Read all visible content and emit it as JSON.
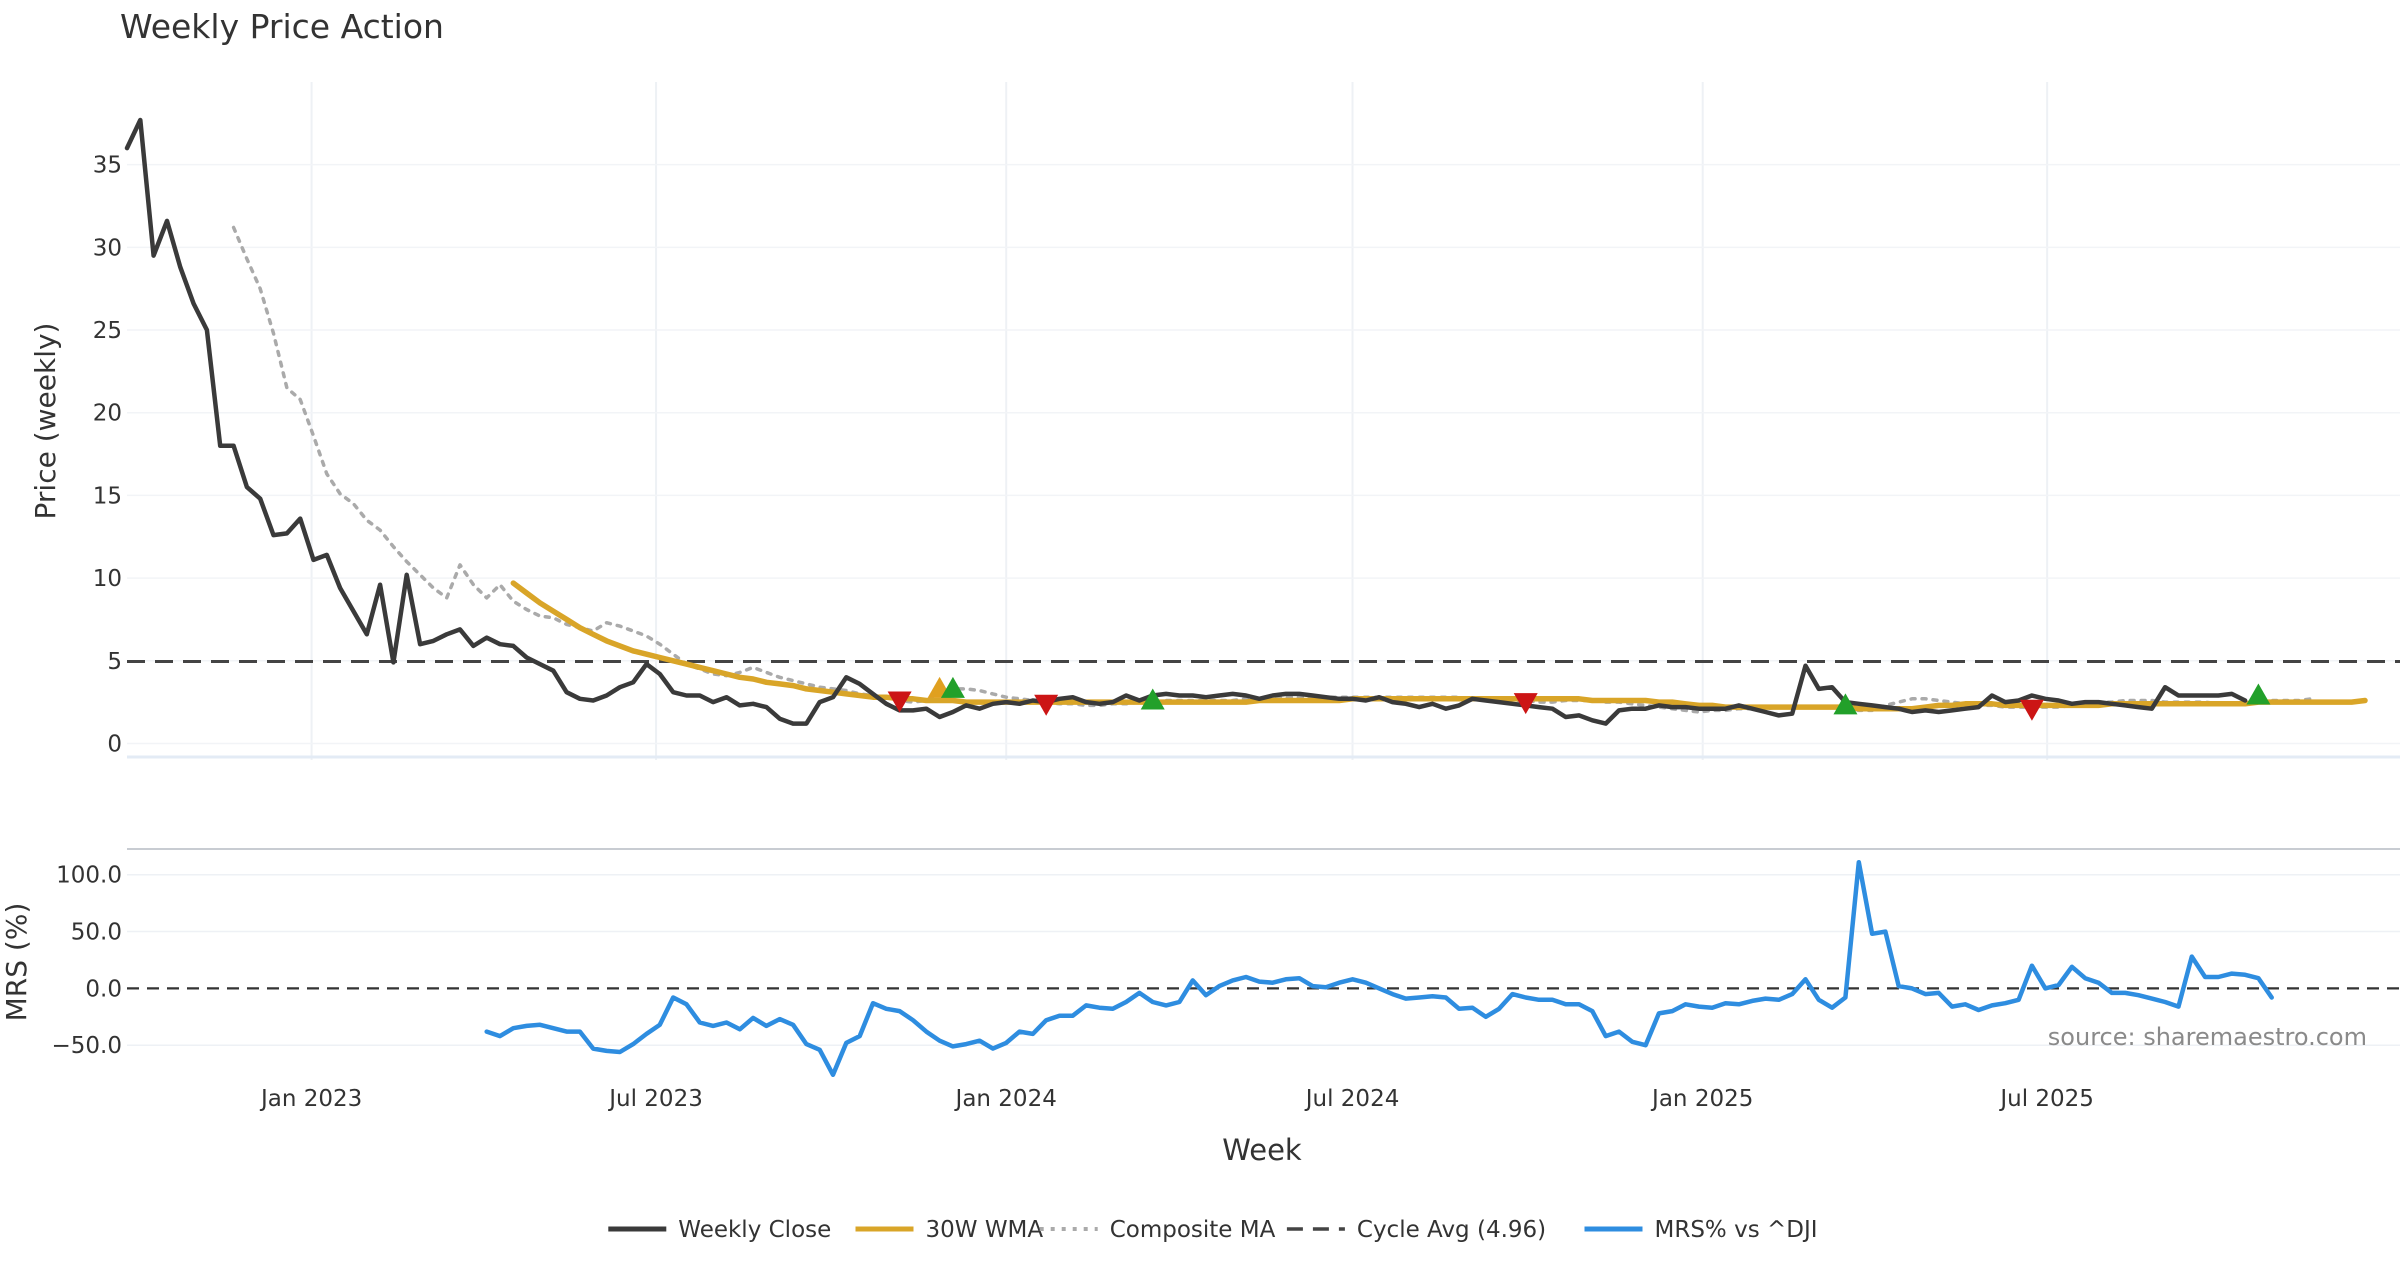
{
  "chart_data": [
    {
      "type": "line",
      "title": "Weekly Price Action",
      "xlabel": "",
      "ylabel": "Price (weekly)",
      "ylim": [
        -1,
        40
      ],
      "yticks": [
        0,
        5,
        10,
        15,
        20,
        25,
        30,
        35
      ],
      "grid": true,
      "x_range": [
        "2022-09-26",
        "2025-11-24"
      ],
      "series": [
        {
          "name": "Weekly Close",
          "color": "#3a3a3a",
          "start_week": "2022-09-26",
          "values": [
            36.0,
            37.7,
            29.5,
            31.6,
            28.8,
            26.6,
            25.0,
            18.0,
            18.0,
            15.5,
            14.8,
            12.6,
            12.7,
            13.6,
            11.1,
            11.4,
            9.4,
            8.0,
            6.6,
            9.6,
            4.9,
            10.2,
            6.0,
            6.2,
            6.6,
            6.9,
            5.9,
            6.4,
            6.0,
            5.9,
            5.2,
            4.8,
            4.4,
            3.1,
            2.7,
            2.6,
            2.9,
            3.4,
            3.7,
            4.8,
            4.2,
            3.1,
            2.9,
            2.9,
            2.5,
            2.8,
            2.3,
            2.4,
            2.2,
            1.5,
            1.2,
            1.2,
            2.5,
            2.8,
            4.0,
            3.6,
            3.0,
            2.4,
            2.0,
            2.0,
            2.1,
            1.6,
            1.9,
            2.3,
            2.1,
            2.4,
            2.5,
            2.4,
            2.6,
            2.5,
            2.7,
            2.8,
            2.5,
            2.4,
            2.5,
            2.9,
            2.6,
            2.9,
            3.0,
            2.9,
            2.9,
            2.8,
            2.9,
            3.0,
            2.9,
            2.7,
            2.9,
            3.0,
            3.0,
            2.9,
            2.8,
            2.7,
            2.7,
            2.6,
            2.8,
            2.5,
            2.4,
            2.2,
            2.4,
            2.1,
            2.3,
            2.7,
            2.6,
            2.5,
            2.4,
            2.3,
            2.2,
            2.1,
            1.6,
            1.7,
            1.4,
            1.2,
            2.0,
            2.1,
            2.1,
            2.3,
            2.2,
            2.2,
            2.1,
            2.1,
            2.1,
            2.3,
            2.1,
            1.9,
            1.7,
            1.8,
            4.7,
            3.3,
            3.4,
            2.5,
            2.4,
            2.3,
            2.2,
            2.1,
            1.9,
            2.0,
            1.9,
            2.0,
            2.1,
            2.2,
            2.9,
            2.5,
            2.6,
            2.9,
            2.7,
            2.6,
            2.4,
            2.5,
            2.5,
            2.4,
            2.3,
            2.2,
            2.1,
            3.4,
            2.9,
            2.9,
            2.9,
            2.9,
            3.0,
            2.6
          ]
        },
        {
          "name": "30W WMA",
          "color": "#d9a528",
          "start_week": "2023-04-17",
          "values": [
            9.7,
            9.1,
            8.5,
            8.0,
            7.5,
            7.0,
            6.6,
            6.2,
            5.9,
            5.6,
            5.4,
            5.2,
            5.0,
            4.8,
            4.6,
            4.4,
            4.2,
            4.0,
            3.9,
            3.7,
            3.6,
            3.5,
            3.3,
            3.2,
            3.1,
            3.0,
            2.9,
            2.8,
            2.8,
            2.7,
            2.7,
            2.6,
            2.6,
            2.6,
            2.5,
            2.5,
            2.5,
            2.5,
            2.5,
            2.5,
            2.5,
            2.5,
            2.5,
            2.5,
            2.5,
            2.5,
            2.5,
            2.5,
            2.5,
            2.5,
            2.5,
            2.5,
            2.5,
            2.5,
            2.5,
            2.5,
            2.6,
            2.6,
            2.6,
            2.6,
            2.6,
            2.6,
            2.6,
            2.7,
            2.7,
            2.7,
            2.7,
            2.7,
            2.7,
            2.7,
            2.7,
            2.7,
            2.7,
            2.7,
            2.7,
            2.7,
            2.7,
            2.7,
            2.7,
            2.7,
            2.7,
            2.6,
            2.6,
            2.6,
            2.6,
            2.6,
            2.5,
            2.5,
            2.4,
            2.3,
            2.3,
            2.2,
            2.2,
            2.2,
            2.2,
            2.2,
            2.2,
            2.2,
            2.2,
            2.2,
            2.2,
            2.1,
            2.1,
            2.1,
            2.1,
            2.1,
            2.2,
            2.3,
            2.3,
            2.4,
            2.4,
            2.4,
            2.3,
            2.3,
            2.3,
            2.3,
            2.3,
            2.3,
            2.3,
            2.3,
            2.4,
            2.4,
            2.4,
            2.4,
            2.4,
            2.4,
            2.4,
            2.4,
            2.4,
            2.4,
            2.4,
            2.5,
            2.5,
            2.5,
            2.5,
            2.5,
            2.5,
            2.5,
            2.5,
            2.6
          ]
        },
        {
          "name": "Composite MA",
          "color": "#aaaaaa",
          "start_week": "2022-11-21",
          "values": [
            31.2,
            29.3,
            27.5,
            24.8,
            21.5,
            20.8,
            18.6,
            16.3,
            15.1,
            14.5,
            13.5,
            12.9,
            11.9,
            11.0,
            10.2,
            9.4,
            8.8,
            10.8,
            9.6,
            8.8,
            9.6,
            8.6,
            8.1,
            7.7,
            7.6,
            7.2,
            7.0,
            6.8,
            7.3,
            7.1,
            6.8,
            6.5,
            6.0,
            5.4,
            4.8,
            4.5,
            4.2,
            4.1,
            4.3,
            4.6,
            4.3,
            4.0,
            3.8,
            3.6,
            3.4,
            3.3,
            3.2,
            3.0,
            2.9,
            2.8,
            2.6,
            2.5,
            2.6,
            2.9,
            3.3,
            3.3,
            3.2,
            3.0,
            2.8,
            2.7,
            2.6,
            2.5,
            2.4,
            2.4,
            2.3,
            2.3,
            2.4,
            2.4,
            2.5,
            2.5,
            2.6,
            2.6,
            2.6,
            2.6,
            2.6,
            2.6,
            2.7,
            2.7,
            2.7,
            2.8,
            2.8,
            2.8,
            2.8,
            2.8,
            2.8,
            2.8,
            2.8,
            2.8,
            2.8,
            2.8,
            2.8,
            2.8,
            2.8,
            2.7,
            2.7,
            2.7,
            2.6,
            2.6,
            2.5,
            2.5,
            2.6,
            2.6,
            2.6,
            2.5,
            2.5,
            2.4,
            2.3,
            2.2,
            2.1,
            2.0,
            1.9,
            2.0,
            2.0,
            2.1,
            2.1,
            2.1,
            2.2,
            2.2,
            2.2,
            2.2,
            2.2,
            2.1,
            2.0,
            2.0,
            2.3,
            2.5,
            2.7,
            2.7,
            2.6,
            2.5,
            2.4,
            2.3,
            2.3,
            2.2,
            2.2,
            2.2,
            2.2,
            2.2,
            2.3,
            2.4,
            2.5,
            2.5,
            2.6,
            2.6,
            2.6,
            2.5,
            2.5,
            2.5,
            2.5,
            2.4,
            2.4,
            2.4,
            2.5,
            2.6,
            2.6,
            2.6,
            2.7
          ]
        }
      ],
      "reference_line": {
        "name": "Cycle Avg (4.96)",
        "value": 4.96,
        "color": "#444444"
      },
      "sell_signals": [
        {
          "date": "2023-11-06",
          "value": 2.6
        },
        {
          "date": "2024-01-22",
          "value": 2.4
        },
        {
          "date": "2024-09-30",
          "value": 2.5
        },
        {
          "date": "2025-06-23",
          "value": 2.1
        }
      ],
      "buy_signals": [
        {
          "date": "2023-11-27",
          "value": 3.3,
          "color": "#e0a020"
        },
        {
          "date": "2023-12-04",
          "value": 3.3,
          "color": "#22a02a"
        },
        {
          "date": "2024-03-18",
          "value": 2.6,
          "color": "#22a02a"
        },
        {
          "date": "2025-03-17",
          "value": 2.3,
          "color": "#22a02a"
        },
        {
          "date": "2025-10-20",
          "value": 2.9,
          "color": "#22a02a"
        }
      ]
    },
    {
      "type": "line",
      "title": "",
      "xlabel": "Week",
      "ylabel": "MRS (%)",
      "ylim": [
        -85,
        120
      ],
      "yticks": [
        -50,
        0,
        50,
        100
      ],
      "ytick_labels": [
        "−50.0",
        "0.0",
        "50.0",
        "100.0"
      ],
      "x_tick_dates": [
        "2023-01-01",
        "2023-07-01",
        "2024-01-01",
        "2024-07-01",
        "2025-01-01",
        "2025-07-01"
      ],
      "x_tick_labels": [
        "Jan 2023",
        "Jul 2023",
        "Jan 2024",
        "Jul 2024",
        "Jan 2025",
        "Jul 2025"
      ],
      "zero_line": 0,
      "series": [
        {
          "name": "MRS% vs ^DJI",
          "color": "#2e8de0",
          "start_week": "2023-04-03",
          "values": [
            -38,
            -42,
            -35,
            -33,
            -32,
            -35,
            -38,
            -38,
            -53,
            -55,
            -56,
            -49,
            -40,
            -32,
            -8,
            -14,
            -30,
            -33,
            -30,
            -36,
            -26,
            -33,
            -27,
            -32,
            -49,
            -54,
            -76,
            -48,
            -42,
            -13,
            -18,
            -20,
            -28,
            -38,
            -46,
            -51,
            -49,
            -46,
            -53,
            -48,
            -38,
            -40,
            -28,
            -24,
            -24,
            -15,
            -17,
            -18,
            -12,
            -4,
            -12,
            -15,
            -12,
            7,
            -6,
            2,
            7,
            10,
            6,
            5,
            8,
            9,
            2,
            1,
            5,
            8,
            5,
            0,
            -5,
            -9,
            -8,
            -7,
            -8,
            -18,
            -17,
            -25,
            -18,
            -5,
            -8,
            -10,
            -10,
            -14,
            -14,
            -20,
            -42,
            -38,
            -47,
            -50,
            -22,
            -20,
            -14,
            -16,
            -17,
            -13,
            -14,
            -11,
            -9,
            -10,
            -5,
            8,
            -10,
            -17,
            -8,
            111,
            48,
            50,
            2,
            0,
            -5,
            -4,
            -16,
            -14,
            -19,
            -15,
            -13,
            -10,
            20,
            0,
            3,
            19,
            9,
            5,
            -4,
            -4,
            -6,
            -9,
            -12,
            -16,
            28,
            10,
            10,
            13,
            12,
            9,
            -8
          ]
        }
      ],
      "annotation": "source: sharemaestro.com"
    }
  ],
  "legend": {
    "placement": "bottom-center",
    "items": [
      {
        "label": "Weekly Close",
        "style": "solid",
        "color": "#3a3a3a"
      },
      {
        "label": "30W WMA",
        "style": "solid",
        "color": "#d9a528"
      },
      {
        "label": "Composite MA",
        "style": "dotted",
        "color": "#aaaaaa"
      },
      {
        "label": "Cycle Avg (4.96)",
        "style": "dashed",
        "color": "#444444"
      },
      {
        "label": "MRS% vs ^DJI",
        "style": "solid",
        "color": "#2e8de0"
      }
    ]
  }
}
